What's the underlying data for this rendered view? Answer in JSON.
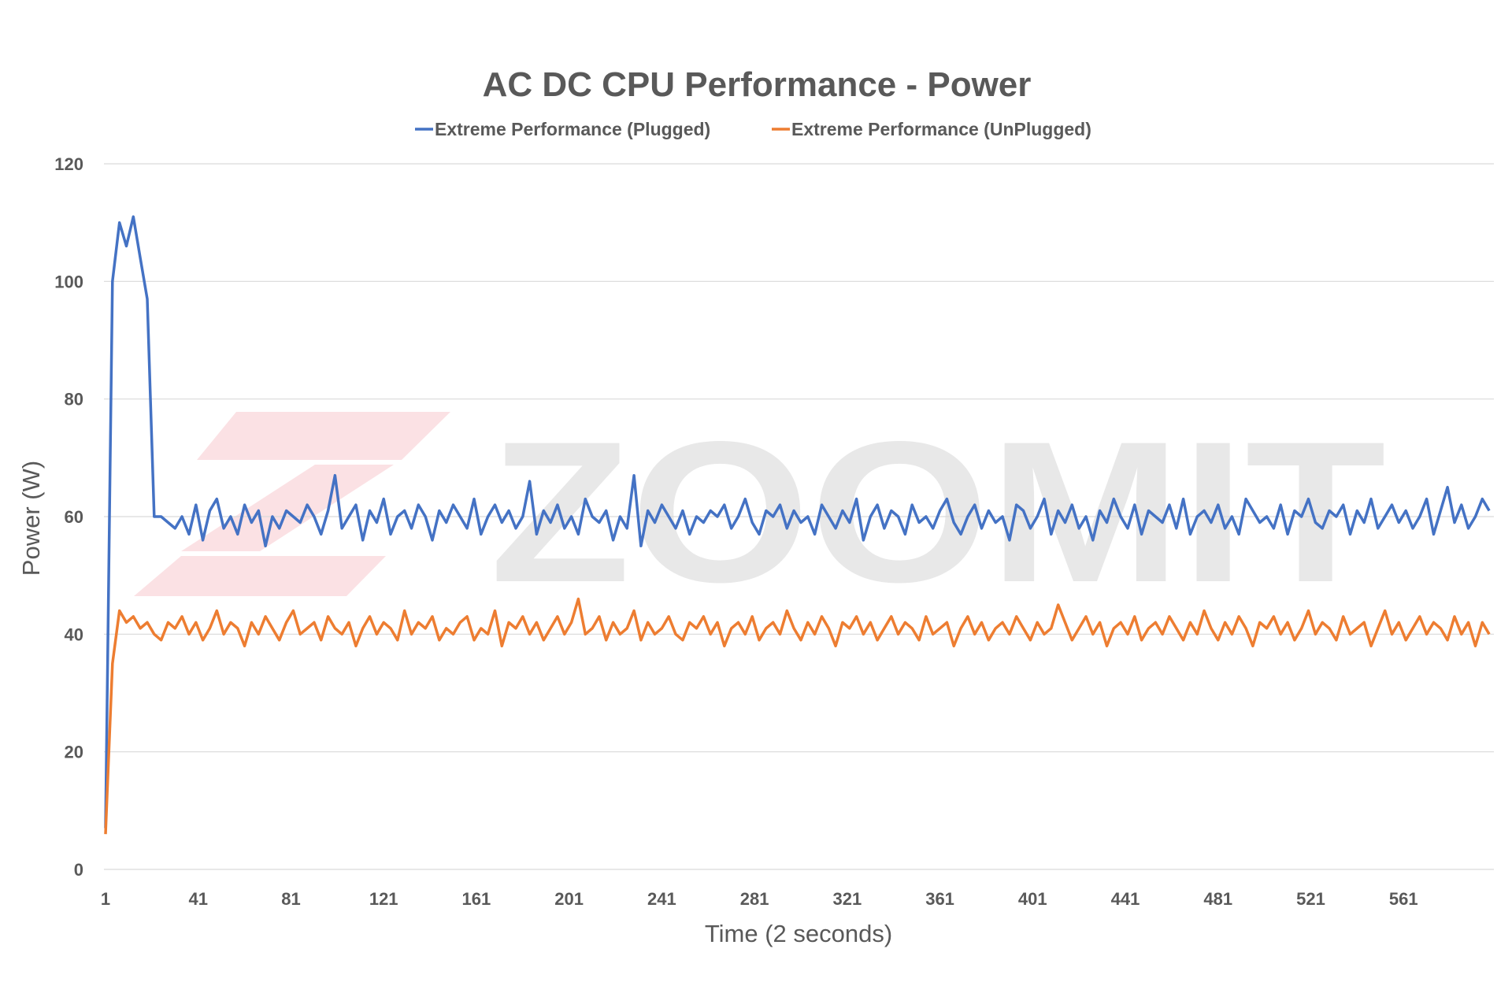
{
  "chart_data": {
    "type": "line",
    "title": "AC DC CPU Performance - Power",
    "xlabel": "Time (2 seconds)",
    "ylabel": "Power (W)",
    "ylim": [
      0,
      120
    ],
    "yticks": [
      0,
      20,
      40,
      60,
      80,
      100,
      120
    ],
    "xlim": [
      1,
      600
    ],
    "xticks": [
      1,
      41,
      81,
      121,
      161,
      201,
      241,
      281,
      321,
      361,
      401,
      441,
      481,
      521,
      561
    ],
    "grid": true,
    "legend_position": "top",
    "x_start": 1,
    "x_step": 3,
    "watermark": "ZOOMIT",
    "series": [
      {
        "name": "Extreme Performance (Plugged)",
        "color": "#4472c4",
        "values": [
          7,
          100,
          110,
          106,
          111,
          104,
          97,
          60,
          60,
          59,
          58,
          60,
          57,
          62,
          56,
          61,
          63,
          58,
          60,
          57,
          62,
          59,
          61,
          55,
          60,
          58,
          61,
          60,
          59,
          62,
          60,
          57,
          61,
          67,
          58,
          60,
          62,
          56,
          61,
          59,
          63,
          57,
          60,
          61,
          58,
          62,
          60,
          56,
          61,
          59,
          62,
          60,
          58,
          63,
          57,
          60,
          62,
          59,
          61,
          58,
          60,
          66,
          57,
          61,
          59,
          62,
          58,
          60,
          57,
          63,
          60,
          59,
          61,
          56,
          60,
          58,
          67,
          55,
          61,
          59,
          62,
          60,
          58,
          61,
          57,
          60,
          59,
          61,
          60,
          62,
          58,
          60,
          63,
          59,
          57,
          61,
          60,
          62,
          58,
          61,
          59,
          60,
          57,
          62,
          60,
          58,
          61,
          59,
          63,
          56,
          60,
          62,
          58,
          61,
          60,
          57,
          62,
          59,
          60,
          58,
          61,
          63,
          59,
          57,
          60,
          62,
          58,
          61,
          59,
          60,
          56,
          62,
          61,
          58,
          60,
          63,
          57,
          61,
          59,
          62,
          58,
          60,
          56,
          61,
          59,
          63,
          60,
          58,
          62,
          57,
          61,
          60,
          59,
          62,
          58,
          63,
          57,
          60,
          61,
          59,
          62,
          58,
          60,
          57,
          63,
          61,
          59,
          60,
          58,
          62,
          57,
          61,
          60,
          63,
          59,
          58,
          61,
          60,
          62,
          57,
          61,
          59,
          63,
          58,
          60,
          62,
          59,
          61,
          58,
          60,
          63,
          57,
          61,
          65,
          59,
          62,
          58,
          60,
          63,
          61
        ]
      },
      {
        "name": "Extreme Performance (UnPlugged)",
        "color": "#ed7d31",
        "values": [
          6,
          35,
          44,
          42,
          43,
          41,
          42,
          40,
          39,
          42,
          41,
          43,
          40,
          42,
          39,
          41,
          44,
          40,
          42,
          41,
          38,
          42,
          40,
          43,
          41,
          39,
          42,
          44,
          40,
          41,
          42,
          39,
          43,
          41,
          40,
          42,
          38,
          41,
          43,
          40,
          42,
          41,
          39,
          44,
          40,
          42,
          41,
          43,
          39,
          41,
          40,
          42,
          43,
          39,
          41,
          40,
          44,
          38,
          42,
          41,
          43,
          40,
          42,
          39,
          41,
          43,
          40,
          42,
          46,
          40,
          41,
          43,
          39,
          42,
          40,
          41,
          44,
          39,
          42,
          40,
          41,
          43,
          40,
          39,
          42,
          41,
          43,
          40,
          42,
          38,
          41,
          42,
          40,
          43,
          39,
          41,
          42,
          40,
          44,
          41,
          39,
          42,
          40,
          43,
          41,
          38,
          42,
          41,
          43,
          40,
          42,
          39,
          41,
          43,
          40,
          42,
          41,
          39,
          43,
          40,
          41,
          42,
          38,
          41,
          43,
          40,
          42,
          39,
          41,
          42,
          40,
          43,
          41,
          39,
          42,
          40,
          41,
          45,
          42,
          39,
          41,
          43,
          40,
          42,
          38,
          41,
          42,
          40,
          43,
          39,
          41,
          42,
          40,
          43,
          41,
          39,
          42,
          40,
          44,
          41,
          39,
          42,
          40,
          43,
          41,
          38,
          42,
          41,
          43,
          40,
          42,
          39,
          41,
          44,
          40,
          42,
          41,
          39,
          43,
          40,
          41,
          42,
          38,
          41,
          44,
          40,
          42,
          39,
          41,
          43,
          40,
          42,
          41,
          39,
          43,
          40,
          42,
          38,
          42,
          40
        ]
      }
    ]
  }
}
